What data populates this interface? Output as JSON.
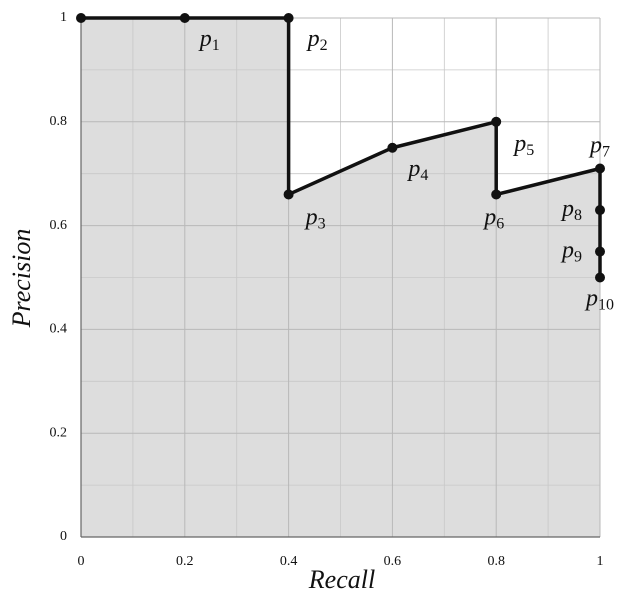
{
  "chart_data": {
    "type": "line",
    "x_label": "Recall",
    "y_label": "Precision",
    "x": [
      0,
      0.2,
      0.4,
      0.4,
      0.6,
      0.8,
      0.8,
      1,
      1,
      1,
      1
    ],
    "values": [
      1,
      1,
      1,
      0.66,
      0.75,
      0.8,
      0.66,
      0.71,
      0.63,
      0.55,
      0.5
    ],
    "point_labels": [
      null,
      "p1",
      "p2",
      "p3",
      "p4",
      "p5",
      "p6",
      "p7",
      "p8",
      "p9",
      "p10"
    ],
    "color": "#111111",
    "fill": "#dddddd",
    "xlim": [
      0,
      1
    ],
    "ylim": [
      0,
      1
    ],
    "xticks": [
      0,
      0.2,
      0.4,
      0.6,
      0.8,
      1
    ],
    "yticks": [
      0,
      0.2,
      0.4,
      0.6,
      0.8,
      1
    ],
    "grid": true
  }
}
